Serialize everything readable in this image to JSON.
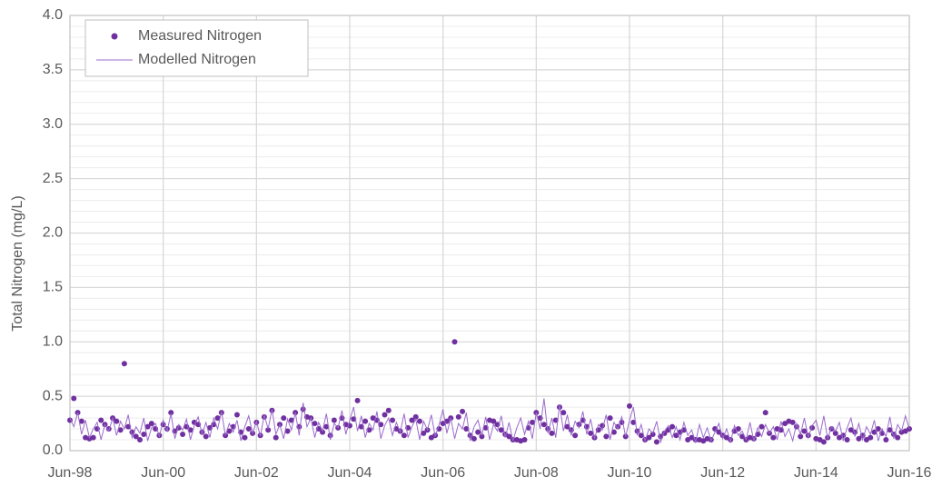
{
  "chart_data": {
    "type": "line",
    "y_label": "Total Nitrogen (mg/L)",
    "x": [
      "1998-06",
      "1998-07",
      "1998-08",
      "1998-09",
      "1998-10",
      "1998-11",
      "1998-12",
      "1999-01",
      "1999-02",
      "1999-03",
      "1999-04",
      "1999-05",
      "1999-06",
      "1999-07",
      "1999-08",
      "1999-09",
      "1999-10",
      "1999-11",
      "1999-12",
      "2000-01",
      "2000-02",
      "2000-03",
      "2000-04",
      "2000-05",
      "2000-06",
      "2000-07",
      "2000-08",
      "2000-09",
      "2000-10",
      "2000-11",
      "2000-12",
      "2001-01",
      "2001-02",
      "2001-03",
      "2001-04",
      "2001-05",
      "2001-06",
      "2001-07",
      "2001-08",
      "2001-09",
      "2001-10",
      "2001-11",
      "2001-12",
      "2002-01",
      "2002-02",
      "2002-03",
      "2002-04",
      "2002-05",
      "2002-06",
      "2002-07",
      "2002-08",
      "2002-09",
      "2002-10",
      "2002-11",
      "2002-12",
      "2003-01",
      "2003-02",
      "2003-03",
      "2003-04",
      "2003-05",
      "2003-06",
      "2003-07",
      "2003-08",
      "2003-09",
      "2003-10",
      "2003-11",
      "2003-12",
      "2004-01",
      "2004-02",
      "2004-03",
      "2004-04",
      "2004-05",
      "2004-06",
      "2004-07",
      "2004-08",
      "2004-09",
      "2004-10",
      "2004-11",
      "2004-12",
      "2005-01",
      "2005-02",
      "2005-03",
      "2005-04",
      "2005-05",
      "2005-06",
      "2005-07",
      "2005-08",
      "2005-09",
      "2005-10",
      "2005-11",
      "2005-12",
      "2006-01",
      "2006-02",
      "2006-03",
      "2006-04",
      "2006-05",
      "2006-06",
      "2006-07",
      "2006-08",
      "2006-09",
      "2006-10",
      "2006-11",
      "2006-12",
      "2007-01",
      "2007-02",
      "2007-03",
      "2007-04",
      "2007-05",
      "2007-06",
      "2007-07",
      "2007-08",
      "2007-09",
      "2007-10",
      "2007-11",
      "2007-12",
      "2008-01",
      "2008-02",
      "2008-03",
      "2008-04",
      "2008-05",
      "2008-06",
      "2008-07",
      "2008-08",
      "2008-09",
      "2008-10",
      "2008-11",
      "2008-12",
      "2009-01",
      "2009-02",
      "2009-03",
      "2009-04",
      "2009-05",
      "2009-06",
      "2009-07",
      "2009-08",
      "2009-09",
      "2009-10",
      "2009-11",
      "2009-12",
      "2010-01",
      "2010-02",
      "2010-03",
      "2010-04",
      "2010-05",
      "2010-06",
      "2010-07",
      "2010-08",
      "2010-09",
      "2010-10",
      "2010-11",
      "2010-12",
      "2011-01",
      "2011-02",
      "2011-03",
      "2011-04",
      "2011-05",
      "2011-06",
      "2011-07",
      "2011-08",
      "2011-09",
      "2011-10",
      "2011-11",
      "2011-12",
      "2012-01",
      "2012-02",
      "2012-03",
      "2012-04",
      "2012-05",
      "2012-06",
      "2012-07",
      "2012-08",
      "2012-09",
      "2012-10",
      "2012-11",
      "2012-12",
      "2013-01",
      "2013-02",
      "2013-03",
      "2013-04",
      "2013-05",
      "2013-06",
      "2013-07",
      "2013-08",
      "2013-09",
      "2013-10",
      "2013-11",
      "2013-12",
      "2014-01",
      "2014-02",
      "2014-03",
      "2014-04",
      "2014-05",
      "2014-06",
      "2014-07",
      "2014-08",
      "2014-09",
      "2014-10",
      "2014-11",
      "2014-12",
      "2015-01",
      "2015-02",
      "2015-03",
      "2015-04",
      "2015-05",
      "2015-06",
      "2015-07",
      "2015-08",
      "2015-09",
      "2015-10",
      "2015-11",
      "2015-12",
      "2016-01",
      "2016-02",
      "2016-03",
      "2016-04",
      "2016-05",
      "2016-06"
    ],
    "series": [
      {
        "name": "Measured Nitrogen",
        "color": "#7030a0",
        "style": "markers",
        "values": [
          0.28,
          0.48,
          0.35,
          0.27,
          0.12,
          0.11,
          0.12,
          0.2,
          0.28,
          0.24,
          0.2,
          0.3,
          0.27,
          0.19,
          0.8,
          0.22,
          0.17,
          0.13,
          0.1,
          0.15,
          0.22,
          0.25,
          0.2,
          0.14,
          0.24,
          0.2,
          0.35,
          0.18,
          0.21,
          0.15,
          0.22,
          0.19,
          0.26,
          0.24,
          0.17,
          0.13,
          0.21,
          0.24,
          0.3,
          0.35,
          0.14,
          0.18,
          0.22,
          0.33,
          0.17,
          0.12,
          0.2,
          0.16,
          0.26,
          0.14,
          0.31,
          0.19,
          0.37,
          0.12,
          0.24,
          0.3,
          0.18,
          0.28,
          0.35,
          0.22,
          0.38,
          0.31,
          0.3,
          0.25,
          0.2,
          0.17,
          0.22,
          0.14,
          0.28,
          0.21,
          0.3,
          0.24,
          0.23,
          0.29,
          0.46,
          0.22,
          0.27,
          0.19,
          0.3,
          0.28,
          0.24,
          0.33,
          0.37,
          0.28,
          0.2,
          0.18,
          0.14,
          0.21,
          0.28,
          0.31,
          0.27,
          0.16,
          0.19,
          0.12,
          0.14,
          0.2,
          0.25,
          0.27,
          0.3,
          1.0,
          0.31,
          0.36,
          0.2,
          0.14,
          0.11,
          0.17,
          0.13,
          0.21,
          0.28,
          0.27,
          0.24,
          0.19,
          0.15,
          0.13,
          0.1,
          0.1,
          0.09,
          0.1,
          0.21,
          0.26,
          0.35,
          0.3,
          0.24,
          0.2,
          0.16,
          0.28,
          0.4,
          0.35,
          0.22,
          0.19,
          0.14,
          0.24,
          0.28,
          0.22,
          0.16,
          0.12,
          0.19,
          0.23,
          0.13,
          0.3,
          0.17,
          0.22,
          0.26,
          0.13,
          0.41,
          0.26,
          0.18,
          0.14,
          0.1,
          0.12,
          0.15,
          0.08,
          0.13,
          0.16,
          0.19,
          0.22,
          0.14,
          0.17,
          0.19,
          0.1,
          0.12,
          0.1,
          0.1,
          0.09,
          0.11,
          0.1,
          0.2,
          0.17,
          0.14,
          0.12,
          0.1,
          0.18,
          0.2,
          0.13,
          0.1,
          0.12,
          0.11,
          0.15,
          0.22,
          0.35,
          0.16,
          0.12,
          0.2,
          0.19,
          0.25,
          0.27,
          0.26,
          0.22,
          0.13,
          0.18,
          0.14,
          0.21,
          0.11,
          0.1,
          0.08,
          0.12,
          0.2,
          0.16,
          0.12,
          0.14,
          0.1,
          0.19,
          0.17,
          0.11,
          0.14,
          0.1,
          0.12,
          0.17,
          0.2,
          0.16,
          0.1,
          0.19,
          0.15,
          0.12,
          0.17,
          0.18,
          0.2
        ]
      },
      {
        "name": "Modelled Nitrogen",
        "color": "#9b6bcc",
        "style": "line",
        "values": [
          0.3,
          0.22,
          0.35,
          0.15,
          0.28,
          0.12,
          0.2,
          0.26,
          0.1,
          0.24,
          0.18,
          0.3,
          0.14,
          0.27,
          0.2,
          0.33,
          0.12,
          0.22,
          0.16,
          0.3,
          0.09,
          0.21,
          0.25,
          0.13,
          0.28,
          0.18,
          0.34,
          0.11,
          0.24,
          0.19,
          0.29,
          0.1,
          0.23,
          0.31,
          0.15,
          0.26,
          0.12,
          0.3,
          0.2,
          0.36,
          0.14,
          0.25,
          0.17,
          0.28,
          0.09,
          0.22,
          0.32,
          0.16,
          0.27,
          0.13,
          0.33,
          0.2,
          0.38,
          0.15,
          0.24,
          0.11,
          0.29,
          0.19,
          0.35,
          0.14,
          0.44,
          0.22,
          0.3,
          0.12,
          0.26,
          0.18,
          0.34,
          0.1,
          0.25,
          0.21,
          0.37,
          0.15,
          0.28,
          0.4,
          0.18,
          0.32,
          0.12,
          0.25,
          0.19,
          0.36,
          0.11,
          0.23,
          0.3,
          0.14,
          0.26,
          0.17,
          0.34,
          0.12,
          0.22,
          0.29,
          0.1,
          0.27,
          0.19,
          0.33,
          0.13,
          0.24,
          0.38,
          0.16,
          0.3,
          0.11,
          0.25,
          0.2,
          0.35,
          0.09,
          0.22,
          0.28,
          0.14,
          0.31,
          0.1,
          0.24,
          0.18,
          0.32,
          0.12,
          0.26,
          0.09,
          0.21,
          0.3,
          0.15,
          0.27,
          0.11,
          0.35,
          0.2,
          0.48,
          0.16,
          0.3,
          0.12,
          0.42,
          0.18,
          0.33,
          0.14,
          0.27,
          0.21,
          0.36,
          0.15,
          0.29,
          0.11,
          0.24,
          0.19,
          0.33,
          0.1,
          0.26,
          0.2,
          0.31,
          0.13,
          0.28,
          0.4,
          0.14,
          0.24,
          0.09,
          0.2,
          0.16,
          0.27,
          0.08,
          0.18,
          0.23,
          0.12,
          0.22,
          0.1,
          0.26,
          0.14,
          0.19,
          0.08,
          0.24,
          0.12,
          0.21,
          0.09,
          0.17,
          0.25,
          0.11,
          0.2,
          0.08,
          0.23,
          0.14,
          0.18,
          0.1,
          0.26,
          0.09,
          0.21,
          0.13,
          0.24,
          0.16,
          0.22,
          0.1,
          0.27,
          0.13,
          0.2,
          0.09,
          0.25,
          0.15,
          0.3,
          0.12,
          0.23,
          0.28,
          0.14,
          0.32,
          0.11,
          0.22,
          0.18,
          0.26,
          0.09,
          0.21,
          0.3,
          0.13,
          0.25,
          0.1,
          0.22,
          0.15,
          0.28,
          0.09,
          0.2,
          0.13,
          0.31,
          0.11,
          0.24,
          0.18,
          0.32,
          0.2
        ]
      }
    ],
    "xlim": [
      "1998-06",
      "2016-06"
    ],
    "xticks": [
      {
        "value": "1998-06",
        "label": "Jun-98"
      },
      {
        "value": "2000-06",
        "label": "Jun-00"
      },
      {
        "value": "2002-06",
        "label": "Jun-02"
      },
      {
        "value": "2004-06",
        "label": "Jun-04"
      },
      {
        "value": "2006-06",
        "label": "Jun-06"
      },
      {
        "value": "2008-06",
        "label": "Jun-08"
      },
      {
        "value": "2010-06",
        "label": "Jun-10"
      },
      {
        "value": "2012-06",
        "label": "Jun-12"
      },
      {
        "value": "2014-06",
        "label": "Jun-14"
      },
      {
        "value": "2016-06",
        "label": "Jun-16"
      }
    ],
    "ylim": [
      0,
      4
    ],
    "yticks": [
      {
        "value": 0,
        "label": "0.0"
      },
      {
        "value": 0.5,
        "label": "0.5"
      },
      {
        "value": 1,
        "label": "1.0"
      },
      {
        "value": 1.5,
        "label": "1.5"
      },
      {
        "value": 2,
        "label": "2.0"
      },
      {
        "value": 2.5,
        "label": "2.5"
      },
      {
        "value": 3,
        "label": "3.0"
      },
      {
        "value": 3.5,
        "label": "3.5"
      },
      {
        "value": 4,
        "label": "4.0"
      }
    ],
    "grid": true,
    "legend": "upper-left"
  }
}
